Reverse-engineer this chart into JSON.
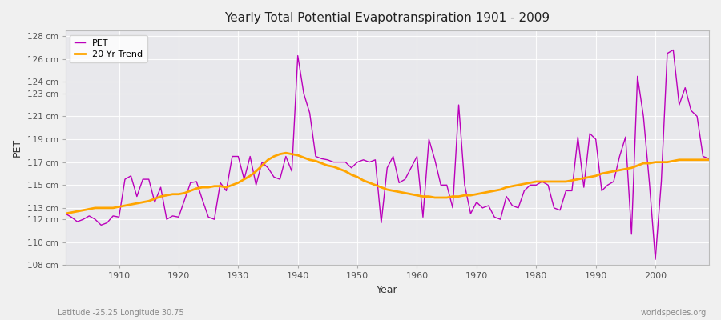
{
  "title": "Yearly Total Potential Evapotranspiration 1901 - 2009",
  "xlabel": "Year",
  "ylabel": "PET",
  "subtitle_left": "Latitude -25.25 Longitude 30.75",
  "subtitle_right": "worldspecies.org",
  "pet_color": "#bb00bb",
  "trend_color": "#ffa500",
  "bg_color": "#f0f0f0",
  "plot_bg_color": "#e8e8ec",
  "ylim": [
    108,
    128.5
  ],
  "years": [
    1901,
    1902,
    1903,
    1904,
    1905,
    1906,
    1907,
    1908,
    1909,
    1910,
    1911,
    1912,
    1913,
    1914,
    1915,
    1916,
    1917,
    1918,
    1919,
    1920,
    1921,
    1922,
    1923,
    1924,
    1925,
    1926,
    1927,
    1928,
    1929,
    1930,
    1931,
    1932,
    1933,
    1934,
    1935,
    1936,
    1937,
    1938,
    1939,
    1940,
    1941,
    1942,
    1943,
    1944,
    1945,
    1946,
    1947,
    1948,
    1949,
    1950,
    1951,
    1952,
    1953,
    1954,
    1955,
    1956,
    1957,
    1958,
    1959,
    1960,
    1961,
    1962,
    1963,
    1964,
    1965,
    1966,
    1967,
    1968,
    1969,
    1970,
    1971,
    1972,
    1973,
    1974,
    1975,
    1976,
    1977,
    1978,
    1979,
    1980,
    1981,
    1982,
    1983,
    1984,
    1985,
    1986,
    1987,
    1988,
    1989,
    1990,
    1991,
    1992,
    1993,
    1994,
    1995,
    1996,
    1997,
    1998,
    1999,
    2000,
    2001,
    2002,
    2003,
    2004,
    2005,
    2006,
    2007,
    2008,
    2009
  ],
  "pet": [
    112.5,
    112.2,
    111.8,
    112.0,
    112.3,
    112.0,
    111.5,
    111.7,
    112.3,
    112.2,
    115.5,
    115.8,
    114.0,
    115.5,
    115.5,
    113.5,
    114.8,
    112.0,
    112.3,
    112.2,
    113.7,
    115.2,
    115.3,
    113.7,
    112.2,
    112.0,
    115.2,
    114.5,
    117.5,
    117.5,
    115.5,
    117.5,
    115.0,
    117.0,
    116.5,
    115.7,
    115.5,
    117.5,
    116.2,
    126.3,
    123.0,
    121.3,
    117.5,
    117.3,
    117.2,
    117.0,
    117.0,
    117.0,
    116.5,
    117.0,
    117.2,
    117.0,
    117.2,
    111.7,
    116.5,
    117.5,
    115.2,
    115.5,
    116.5,
    117.5,
    112.2,
    119.0,
    117.2,
    115.0,
    115.0,
    113.0,
    122.0,
    115.0,
    112.5,
    113.5,
    113.0,
    113.2,
    112.2,
    112.0,
    114.0,
    113.2,
    113.0,
    114.5,
    115.0,
    115.0,
    115.3,
    115.0,
    113.0,
    112.8,
    114.5,
    114.5,
    119.2,
    114.8,
    119.5,
    119.0,
    114.5,
    115.0,
    115.3,
    117.5,
    119.2,
    110.7,
    124.5,
    121.0,
    115.2,
    108.5,
    115.3,
    126.5,
    126.8,
    122.0,
    123.5,
    121.5,
    121.0,
    117.5,
    117.3
  ],
  "trend": [
    112.5,
    112.6,
    112.7,
    112.8,
    112.9,
    113.0,
    113.0,
    113.0,
    113.0,
    113.1,
    113.2,
    113.3,
    113.4,
    113.5,
    113.6,
    113.8,
    114.0,
    114.1,
    114.2,
    114.2,
    114.3,
    114.5,
    114.7,
    114.8,
    114.8,
    114.9,
    114.9,
    114.8,
    115.0,
    115.2,
    115.5,
    115.8,
    116.2,
    116.7,
    117.2,
    117.5,
    117.7,
    117.8,
    117.7,
    117.6,
    117.4,
    117.2,
    117.1,
    116.9,
    116.7,
    116.6,
    116.4,
    116.2,
    115.9,
    115.7,
    115.4,
    115.2,
    115.0,
    114.8,
    114.6,
    114.5,
    114.4,
    114.3,
    114.2,
    114.1,
    114.0,
    114.0,
    113.9,
    113.9,
    113.9,
    114.0,
    114.0,
    114.1,
    114.1,
    114.2,
    114.3,
    114.4,
    114.5,
    114.6,
    114.8,
    114.9,
    115.0,
    115.1,
    115.2,
    115.3,
    115.3,
    115.3,
    115.3,
    115.3,
    115.3,
    115.4,
    115.5,
    115.6,
    115.7,
    115.8,
    116.0,
    116.1,
    116.2,
    116.3,
    116.4,
    116.5,
    116.7,
    116.9,
    116.9,
    117.0,
    117.0,
    117.0,
    117.1,
    117.2,
    117.2,
    117.2,
    117.2,
    117.2,
    117.2
  ]
}
